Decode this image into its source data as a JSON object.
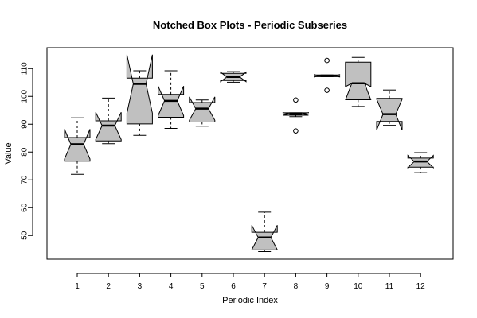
{
  "chart_data": {
    "type": "boxplot",
    "notched": true,
    "title": "Notched Box Plots - Periodic Subseries",
    "xlabel": "Periodic Index",
    "ylabel": "Value",
    "ylim": [
      41.5,
      117.5
    ],
    "yticks": [
      50,
      60,
      70,
      80,
      90,
      100,
      110
    ],
    "categories": [
      "1",
      "2",
      "3",
      "4",
      "5",
      "6",
      "7",
      "8",
      "9",
      "10",
      "11",
      "12"
    ],
    "box_fill": "#c0c0c0",
    "boxes": [
      {
        "category": "1",
        "whisker_low": 72.0,
        "q1": 76.7,
        "median": 82.8,
        "q3": 85.2,
        "whisker_high": 92.3,
        "notch_low": 77.5,
        "notch_high": 88.2,
        "outliers": []
      },
      {
        "category": "2",
        "whisker_low": 83.0,
        "q1": 84.0,
        "median": 89.5,
        "q3": 91.2,
        "whisker_high": 99.4,
        "notch_low": 84.5,
        "notch_high": 94.3,
        "outliers": []
      },
      {
        "category": "3",
        "whisker_low": 86.0,
        "q1": 90.1,
        "median": 104.5,
        "q3": 106.6,
        "whisker_high": 109.2,
        "notch_low": 94.0,
        "notch_high": 115.0,
        "outliers": []
      },
      {
        "category": "4",
        "whisker_low": 88.5,
        "q1": 92.5,
        "median": 98.4,
        "q3": 100.7,
        "whisker_high": 109.2,
        "notch_low": 93.1,
        "notch_high": 103.7,
        "outliers": []
      },
      {
        "category": "5",
        "whisker_low": 89.3,
        "q1": 90.8,
        "median": 95.6,
        "q3": 97.8,
        "whisker_high": 98.7,
        "notch_low": 91.4,
        "notch_high": 99.8,
        "outliers": []
      },
      {
        "category": "6",
        "whisker_low": 105.1,
        "q1": 105.7,
        "median": 107.0,
        "q3": 108.3,
        "whisker_high": 108.9,
        "notch_low": 105.3,
        "notch_high": 108.7,
        "outliers": []
      },
      {
        "category": "7",
        "whisker_low": 44.2,
        "q1": 44.8,
        "median": 49.3,
        "q3": 51.2,
        "whisker_high": 58.4,
        "notch_low": 44.9,
        "notch_high": 53.7,
        "outliers": []
      },
      {
        "category": "8",
        "whisker_low": 92.7,
        "q1": 93.2,
        "median": 93.7,
        "q3": 94.1,
        "whisker_high": 94.1,
        "notch_low": 93.2,
        "notch_high": 94.2,
        "outliers": [
          98.7,
          87.6
        ]
      },
      {
        "category": "9",
        "whisker_low": 107.1,
        "q1": 107.1,
        "median": 107.4,
        "q3": 107.7,
        "whisker_high": 107.7,
        "notch_low": 107.0,
        "notch_high": 107.8,
        "outliers": [
          112.9,
          102.2
        ]
      },
      {
        "category": "10",
        "whisker_low": 96.4,
        "q1": 98.8,
        "median": 104.7,
        "q3": 112.3,
        "whisker_high": 114.0,
        "notch_low": 98.7,
        "notch_high": 103.5,
        "outliers": []
      },
      {
        "category": "11",
        "whisker_low": 89.6,
        "q1": 91.0,
        "median": 93.6,
        "q3": 99.3,
        "whisker_high": 102.3,
        "notch_low": 87.9,
        "notch_high": 99.0,
        "outliers": []
      },
      {
        "category": "12",
        "whisker_low": 72.6,
        "q1": 74.6,
        "median": 76.6,
        "q3": 77.8,
        "whisker_high": 79.8,
        "notch_low": 74.4,
        "notch_high": 78.8,
        "outliers": []
      }
    ]
  }
}
